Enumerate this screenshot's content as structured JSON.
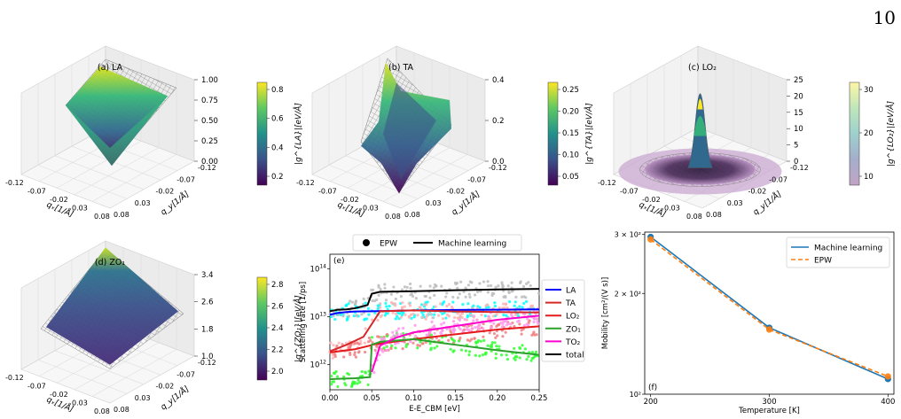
{
  "page_number": "10",
  "panels": {
    "a": {
      "title": "(a) LA",
      "zticks": [
        "1.00",
        "0.75",
        "0.50",
        "0.25",
        "0.00"
      ],
      "cbar_ticks": [
        "0.8",
        "0.6",
        "0.4",
        "0.2"
      ],
      "cbar_label": "|g^{LA}|[eV/Å]"
    },
    "b": {
      "title": "(b) TA",
      "zticks": [
        "0.4",
        "0.2",
        "0.0"
      ],
      "cbar_ticks": [
        "0.25",
        "0.20",
        "0.15",
        "0.10",
        "0.05"
      ],
      "cbar_label": "|g^{TA}|[eV/Å]"
    },
    "c": {
      "title": "(c) LO₂",
      "zticks": [
        "25",
        "20",
        "15",
        "10",
        "5",
        "0"
      ],
      "cbar_ticks": [
        "30",
        "20",
        "10"
      ],
      "cbar_label": "|g^{LO₂}|[eV/Å]"
    },
    "d": {
      "title": "(d) ZO₁",
      "zticks": [
        "3.4",
        "2.6",
        "1.8",
        "1.0"
      ],
      "cbar_ticks": [
        "2.8",
        "2.6",
        "2.4",
        "2.2",
        "2.0"
      ],
      "cbar_label": "|g^{ZO₁}|[eV/Å]"
    }
  },
  "axes3d": {
    "ticks": [
      "-0.12",
      "-0.07",
      "-0.02",
      "0.03",
      "0.08"
    ],
    "qx_label": "qₓ[1/Å]",
    "qy_label": "q_y[1/Å]"
  },
  "legend_top": {
    "epw": "EPW",
    "ml": "Machine learning"
  },
  "colors": {
    "LA": "#0000ff",
    "TA": "#d62728",
    "LO2": "#e41a1c",
    "ZO1": "#2ca02c",
    "TO2": "#ff00cc",
    "total": "#000000",
    "ml_line": "#1f77b4",
    "epw_line": "#ff7f0e"
  },
  "chart_data": [
    {
      "type": "line",
      "panel": "(e)",
      "xlabel": "E-E_CBM [eV]",
      "ylabel": "Scattering rate [1/ps]",
      "xlim": [
        0.0,
        0.25
      ],
      "ylim": [
        300000000000,
        200000000000000
      ],
      "yscale": "log",
      "xticks": [
        "0.00",
        "0.05",
        "0.10",
        "0.15",
        "0.20",
        "0.25"
      ],
      "yticks": [
        "10^12",
        "10^13",
        "10^14"
      ],
      "legend": [
        "LA",
        "TA",
        "LO₂",
        "ZO₁",
        "TO₂",
        "total"
      ],
      "series": [
        {
          "name": "LA",
          "x": [
            0.0,
            0.01,
            0.02,
            0.03,
            0.05,
            0.1,
            0.15,
            0.2,
            0.25
          ],
          "y": [
            11000000000000,
            12000000000000,
            12500000000000,
            12800000000000,
            13000000000000,
            13500000000000,
            13800000000000,
            14000000000000,
            14200000000000
          ]
        },
        {
          "name": "TA",
          "x": [
            0.0,
            0.02,
            0.04,
            0.05,
            0.06,
            0.1,
            0.15,
            0.2,
            0.25
          ],
          "y": [
            1900000000000,
            2600000000000,
            3800000000000,
            7000000000000,
            13000000000000,
            13500000000000,
            12800000000000,
            12500000000000,
            12200000000000
          ]
        },
        {
          "name": "LO₂",
          "x": [
            0.0,
            0.03,
            0.048,
            0.05,
            0.1,
            0.15,
            0.2,
            0.25
          ],
          "y": [
            1800000000000,
            2100000000000,
            2500000000000,
            2600000000000,
            3400000000000,
            4300000000000,
            5400000000000,
            6300000000000
          ]
        },
        {
          "name": "ZO₁",
          "x": [
            0.0,
            0.03,
            0.048,
            0.05,
            0.06,
            0.1,
            0.15,
            0.2,
            0.25
          ],
          "y": [
            500000000000,
            520000000000,
            550000000000,
            2600000000000,
            3000000000000,
            3400000000000,
            2600000000000,
            2000000000000,
            1600000000000
          ]
        },
        {
          "name": "TO₂",
          "x": [
            0.05,
            0.06,
            0.08,
            0.1,
            0.15,
            0.2,
            0.25
          ],
          "y": [
            700000000000,
            2500000000000,
            3700000000000,
            4700000000000,
            6400000000000,
            8600000000000,
            10500000000000
          ]
        },
        {
          "name": "total",
          "x": [
            0.0,
            0.01,
            0.02,
            0.03,
            0.045,
            0.05,
            0.06,
            0.1,
            0.15,
            0.2,
            0.25
          ],
          "y": [
            13000000000000,
            14000000000000,
            14200000000000,
            15000000000000,
            17500000000000,
            30000000000000,
            33000000000000,
            34000000000000,
            35500000000000,
            37000000000000,
            38000000000000
          ]
        }
      ]
    },
    {
      "type": "line",
      "panel": "(f)",
      "xlabel": "Temperature [K]",
      "ylabel": "Mobility [cm²/(V s)]",
      "categories": [
        "200",
        "300",
        "400"
      ],
      "x": [
        200,
        300,
        400
      ],
      "xlim": [
        195,
        405
      ],
      "ylim": [
        100,
        305
      ],
      "yscale": "log",
      "yticks": [
        "10²",
        "2 × 10²",
        "3 × 10²"
      ],
      "legend_placement": "top-right",
      "series": [
        {
          "name": "Machine learning",
          "values": [
            295,
            158,
            111
          ]
        },
        {
          "name": "EPW",
          "values": [
            290,
            156,
            113
          ]
        }
      ]
    }
  ]
}
